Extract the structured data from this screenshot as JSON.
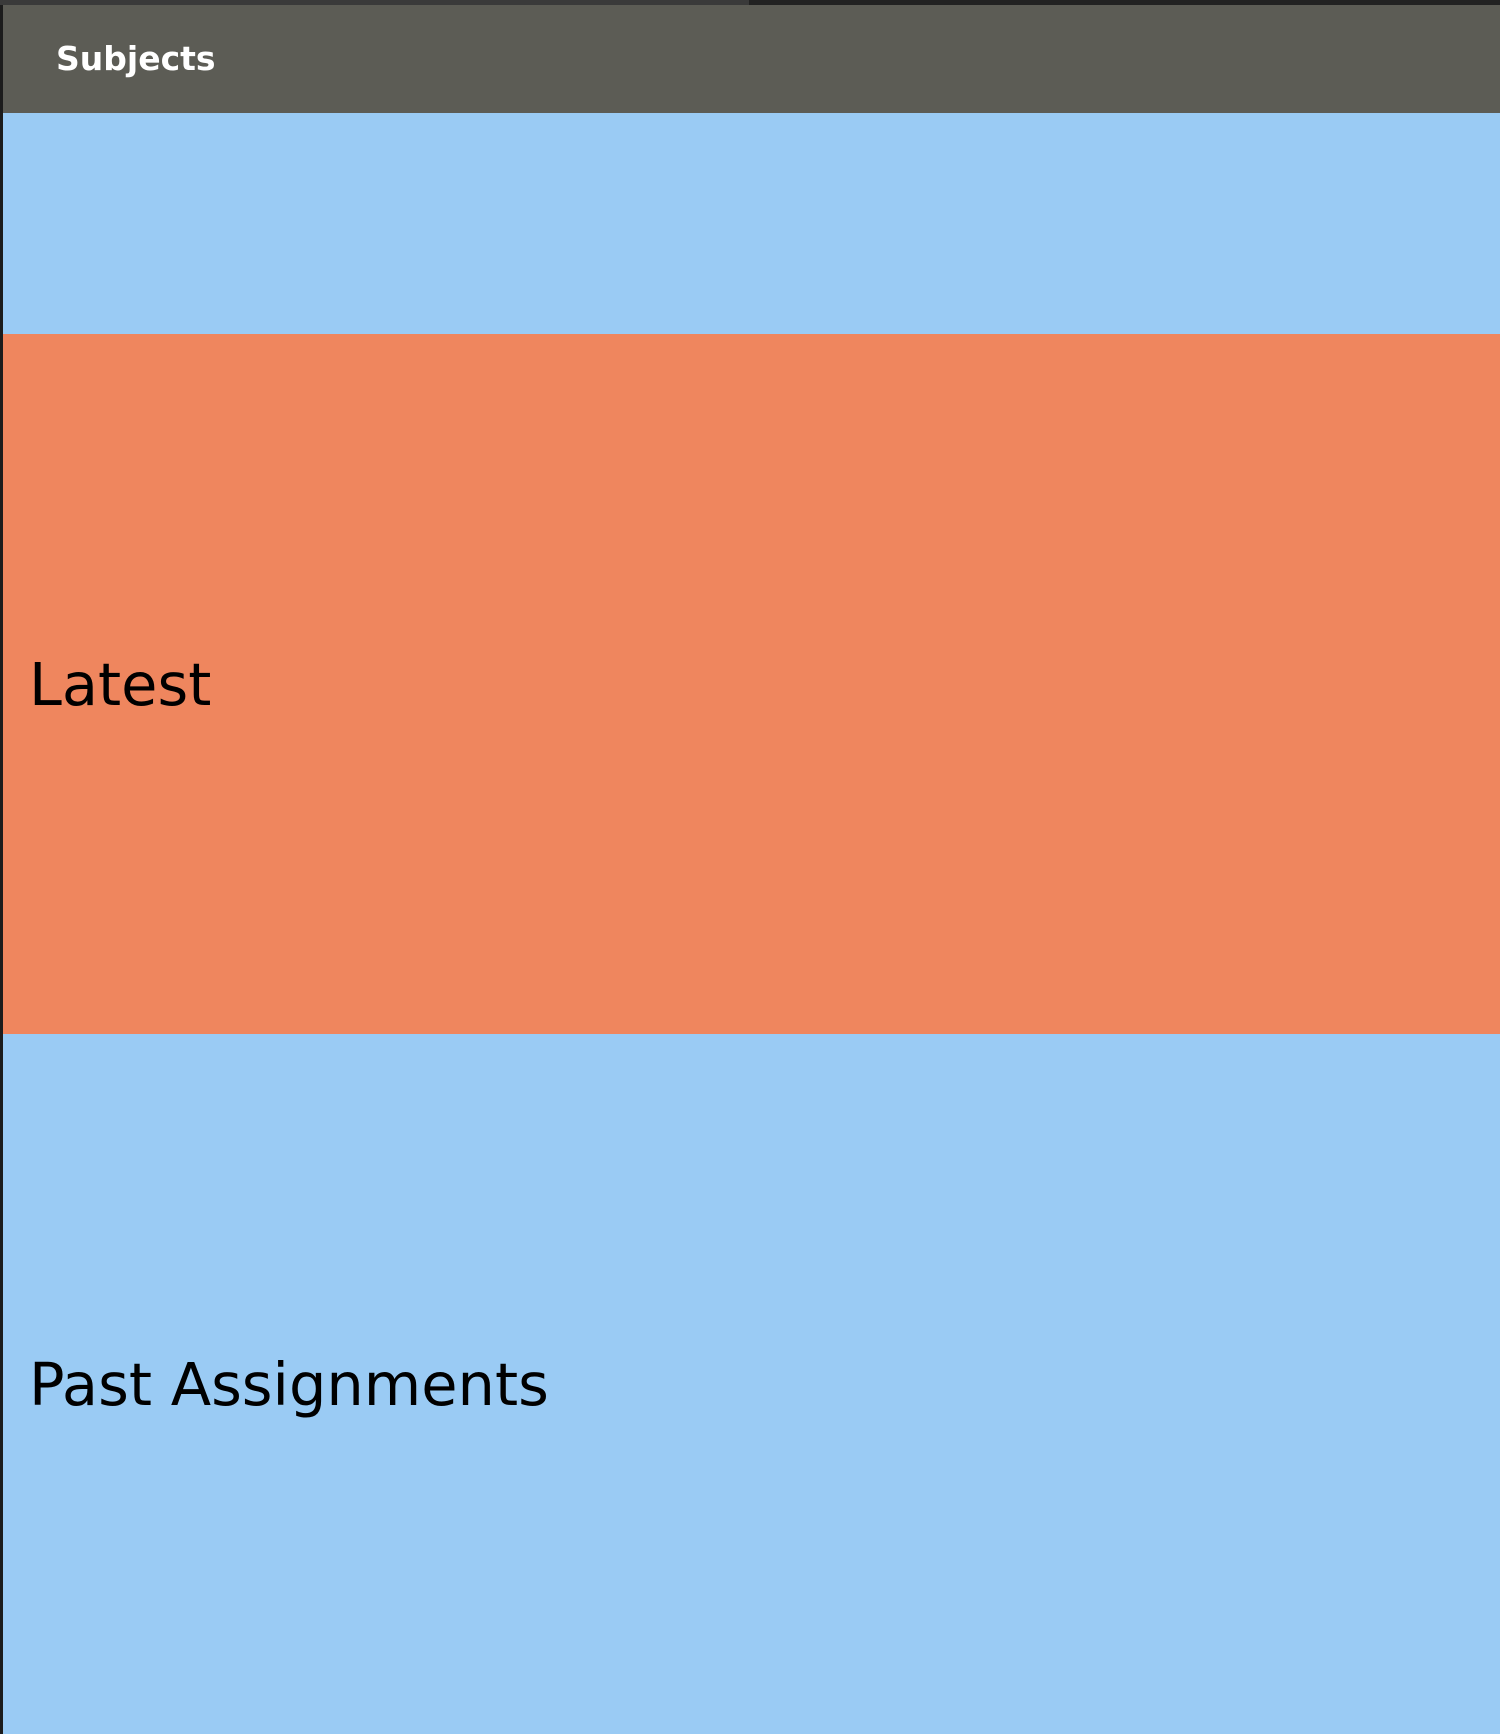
{
  "app_bar": {
    "title": "Subjects"
  },
  "sections": [
    {
      "label": "",
      "color": "#9acbf4"
    },
    {
      "label": "Latest",
      "color": "#ef865e"
    },
    {
      "label": "Past Assignments",
      "color": "#9acbf4"
    }
  ],
  "colors": {
    "app_bar": "#5c5c55",
    "background": "#1c1c1c"
  }
}
